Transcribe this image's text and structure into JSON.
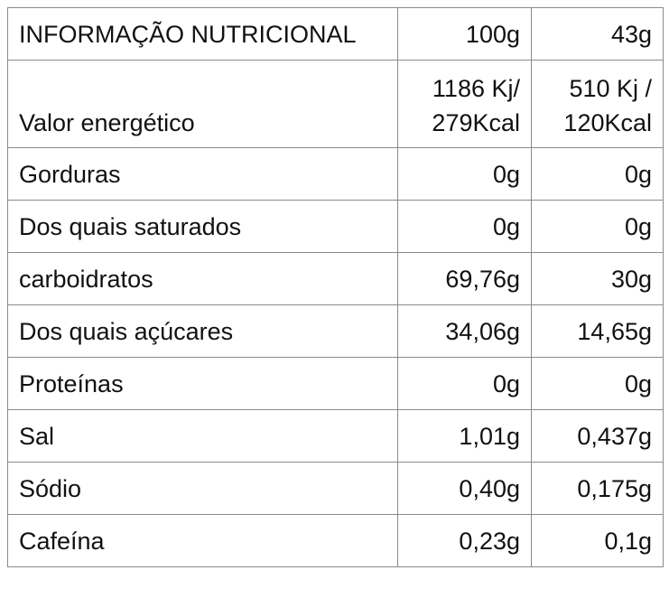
{
  "table": {
    "header": [
      "INFORMAÇÃO NUTRICIONAL",
      "100g",
      "43g"
    ],
    "rows": [
      [
        "Valor energético",
        [
          "1186 Kj/",
          "279Kcal"
        ],
        [
          "510 Kj /",
          "120Kcal"
        ]
      ],
      [
        "Gorduras",
        "0g",
        "0g"
      ],
      [
        "Dos quais saturados",
        "0g",
        "0g"
      ],
      [
        "carboidratos",
        "69,76g",
        "30g"
      ],
      [
        "Dos quais açúcares",
        "34,06g",
        "14,65g"
      ],
      [
        "Proteínas",
        "0g",
        "0g"
      ],
      [
        "Sal",
        "1,01g",
        "0,437g"
      ],
      [
        "Sódio",
        "0,40g",
        "0,175g"
      ],
      [
        "Cafeína",
        "0,23g",
        "0,1g"
      ]
    ]
  }
}
